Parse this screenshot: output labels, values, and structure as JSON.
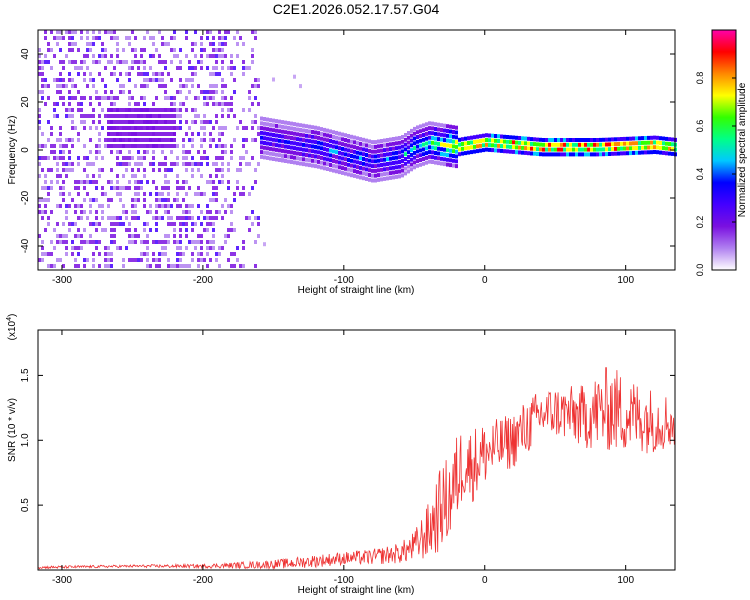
{
  "figure_title": "C2E1.2026.052.17.57.G04",
  "colors": {
    "axis": "#000000",
    "snr_line": "#ee3333",
    "colormap": [
      "#ffffff",
      "#b080f0",
      "#7a10e0",
      "#4400ff",
      "#0000ff",
      "#00c8ff",
      "#00ff88",
      "#33ff00",
      "#ffff00",
      "#ff8800",
      "#ff0000",
      "#ff00aa"
    ]
  },
  "chart_data": [
    {
      "type": "heatmap",
      "title": "",
      "xlabel": "Height of straight line (km)",
      "ylabel": "Frequency (Hz)",
      "xlim": [
        -317,
        135
      ],
      "ylim": [
        -50,
        50
      ],
      "xticks": [
        -300,
        -200,
        -100,
        0,
        100
      ],
      "yticks": [
        -40,
        -20,
        0,
        20,
        40
      ],
      "colorbar": {
        "label": "Normalized spectral amplitude",
        "range": [
          0,
          1
        ],
        "ticks": [
          0.0,
          0.2,
          0.4,
          0.6,
          0.8
        ],
        "tick_labels": [
          "0.0",
          "0.2",
          "0.4",
          "0.6",
          "0.8"
        ],
        "colormap": "rainbow (white-purple-blue-cyan-green-yellow-red-magenta)"
      },
      "ridge": {
        "description": "spectral energy concentrated near 0 Hz above about -160 km",
        "x": [
          -160,
          -140,
          -120,
          -100,
          -80,
          -60,
          -50,
          -40,
          -30,
          -20,
          0,
          40,
          80,
          120,
          135
        ],
        "center_hz": [
          4,
          2,
          0,
          -3,
          -6,
          -4,
          0,
          2,
          1,
          0,
          2,
          0,
          0,
          1,
          0
        ],
        "peak_amplitude": [
          0.3,
          0.3,
          0.35,
          0.35,
          0.35,
          0.4,
          0.45,
          0.5,
          0.6,
          0.75,
          0.85,
          0.9,
          0.9,
          0.85,
          0.8
        ]
      }
    },
    {
      "type": "line",
      "title": "",
      "xlabel": "Height of straight line (km)",
      "ylabel": "SNR (10 * v/v)",
      "y_multiplier": "(x10^4)",
      "xlim": [
        -317,
        135
      ],
      "ylim": [
        0,
        1.85
      ],
      "xticks": [
        -300,
        -200,
        -100,
        0,
        100
      ],
      "yticks": [
        0.5,
        1.0,
        1.5
      ],
      "ytick_labels": [
        "0.5",
        "1.0",
        "1.5"
      ],
      "series": [
        {
          "x": [
            -317,
            -250,
            -200,
            -160,
            -140,
            -120,
            -100,
            -80,
            -60,
            -50,
            -40,
            -35,
            -30,
            -25,
            -20,
            -15,
            -10,
            0,
            10,
            20,
            30,
            40,
            50,
            60,
            70,
            80,
            90,
            100,
            110,
            120,
            130,
            135
          ],
          "values": [
            0.02,
            0.03,
            0.03,
            0.04,
            0.05,
            0.07,
            0.09,
            0.1,
            0.13,
            0.18,
            0.3,
            0.4,
            0.5,
            0.55,
            0.7,
            0.85,
            0.8,
            0.9,
            0.95,
            1.0,
            1.1,
            1.2,
            1.22,
            1.2,
            1.18,
            1.22,
            1.25,
            1.2,
            1.18,
            1.15,
            1.15,
            1.12
          ],
          "spread": [
            0.01,
            0.01,
            0.015,
            0.03,
            0.04,
            0.05,
            0.05,
            0.06,
            0.08,
            0.12,
            0.22,
            0.3,
            0.32,
            0.35,
            0.35,
            0.3,
            0.3,
            0.25,
            0.22,
            0.22,
            0.22,
            0.2,
            0.2,
            0.22,
            0.25,
            0.3,
            0.35,
            0.3,
            0.28,
            0.25,
            0.22,
            0.2
          ]
        }
      ]
    }
  ]
}
